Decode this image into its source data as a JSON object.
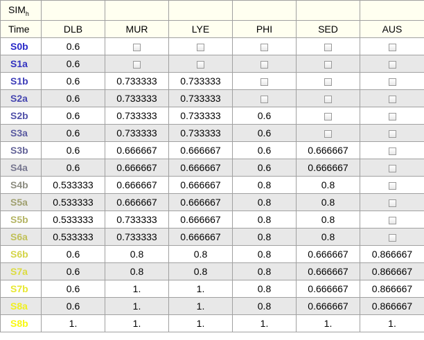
{
  "header": {
    "title_main": "SIM",
    "title_sub": "h",
    "time_label": "Time",
    "columns": [
      "DLB",
      "MUR",
      "LYE",
      "PHI",
      "SED",
      "AUS"
    ]
  },
  "rows": [
    {
      "label": "S0b",
      "color": "#2828c8",
      "cells": [
        "0.6",
        null,
        null,
        null,
        null,
        null
      ]
    },
    {
      "label": "S1a",
      "color": "#3232c0",
      "cells": [
        "0.6",
        null,
        null,
        null,
        null,
        null
      ]
    },
    {
      "label": "S1b",
      "color": "#3c3cb8",
      "cells": [
        "0.6",
        "0.733333",
        "0.733333",
        null,
        null,
        null
      ]
    },
    {
      "label": "S2a",
      "color": "#4646b0",
      "cells": [
        "0.6",
        "0.733333",
        "0.733333",
        null,
        null,
        null
      ]
    },
    {
      "label": "S2b",
      "color": "#5050a8",
      "cells": [
        "0.6",
        "0.733333",
        "0.733333",
        "0.6",
        null,
        null
      ]
    },
    {
      "label": "S3a",
      "color": "#5a5aa0",
      "cells": [
        "0.6",
        "0.733333",
        "0.733333",
        "0.6",
        null,
        null
      ]
    },
    {
      "label": "S3b",
      "color": "#646498",
      "cells": [
        "0.6",
        "0.666667",
        "0.666667",
        "0.6",
        "0.666667",
        null
      ]
    },
    {
      "label": "S4a",
      "color": "#787890",
      "cells": [
        "0.6",
        "0.666667",
        "0.666667",
        "0.6",
        "0.666667",
        null
      ]
    },
    {
      "label": "S4b",
      "color": "#8c8c80",
      "cells": [
        "0.533333",
        "0.666667",
        "0.666667",
        "0.8",
        "0.8",
        null
      ]
    },
    {
      "label": "S5a",
      "color": "#a0a070",
      "cells": [
        "0.533333",
        "0.666667",
        "0.666667",
        "0.8",
        "0.8",
        null
      ]
    },
    {
      "label": "S5b",
      "color": "#b4b464",
      "cells": [
        "0.533333",
        "0.733333",
        "0.666667",
        "0.8",
        "0.8",
        null
      ]
    },
    {
      "label": "S6a",
      "color": "#c0c058",
      "cells": [
        "0.533333",
        "0.733333",
        "0.666667",
        "0.8",
        "0.8",
        null
      ]
    },
    {
      "label": "S6b",
      "color": "#d4d448",
      "cells": [
        "0.6",
        "0.8",
        "0.8",
        "0.8",
        "0.666667",
        "0.866667"
      ]
    },
    {
      "label": "S7a",
      "color": "#dcdc40",
      "cells": [
        "0.6",
        "0.8",
        "0.8",
        "0.8",
        "0.666667",
        "0.866667"
      ]
    },
    {
      "label": "S7b",
      "color": "#e8e830",
      "cells": [
        "0.6",
        "1.",
        "1.",
        "0.8",
        "0.666667",
        "0.866667"
      ]
    },
    {
      "label": "S8a",
      "color": "#f0f020",
      "cells": [
        "0.6",
        "1.",
        "1.",
        "0.8",
        "0.666667",
        "0.866667"
      ]
    },
    {
      "label": "S8b",
      "color": "#f8f810",
      "cells": [
        "1.",
        "1.",
        "1.",
        "1.",
        "1.",
        "1."
      ]
    }
  ]
}
